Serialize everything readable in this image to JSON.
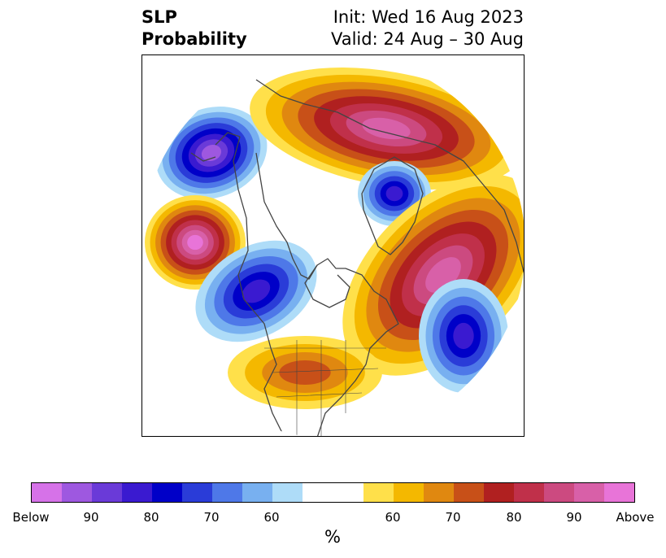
{
  "title": {
    "left_line1": "SLP",
    "left_line2": "Probability",
    "right_line1": "Init: Wed 16 Aug 2023",
    "right_line2": "Valid: 24 Aug – 30 Aug"
  },
  "colorbar": {
    "unit": "%",
    "ticks": [
      "Below",
      "90",
      "80",
      "70",
      "60",
      "60",
      "70",
      "80",
      "90",
      "Above"
    ],
    "below_colors": [
      "#d672e8",
      "#9e58e0",
      "#6a3ad8",
      "#3a1ad0",
      "#0000c8",
      "#2a3cd8",
      "#4e78e8",
      "#78b0f0",
      "#aedcf8"
    ],
    "neutral_color": "#ffffff",
    "above_colors": [
      "#ffe04a",
      "#f4b800",
      "#e08810",
      "#c85018",
      "#b02020",
      "#c0304a",
      "#cc4a80",
      "#d860a8",
      "#e874d8"
    ]
  },
  "map": {
    "projection": "north-polar-stereographic",
    "variable": "SLP probability anomaly",
    "features": [
      {
        "name": "gulf-of-alaska-low",
        "tercile": "below",
        "level": "90"
      },
      {
        "name": "north-pacific-high",
        "tercile": "above",
        "level": "Above"
      },
      {
        "name": "aleutian-low",
        "tercile": "below",
        "level": "80"
      },
      {
        "name": "siberia-arctic-high",
        "tercile": "above",
        "level": "90"
      },
      {
        "name": "greenland-low",
        "tercile": "below",
        "level": "80"
      },
      {
        "name": "canada-atlantic-high",
        "tercile": "above",
        "level": "90"
      },
      {
        "name": "north-atlantic-low",
        "tercile": "below",
        "level": "80"
      },
      {
        "name": "eastern-us-high",
        "tercile": "above",
        "level": "70"
      }
    ]
  }
}
